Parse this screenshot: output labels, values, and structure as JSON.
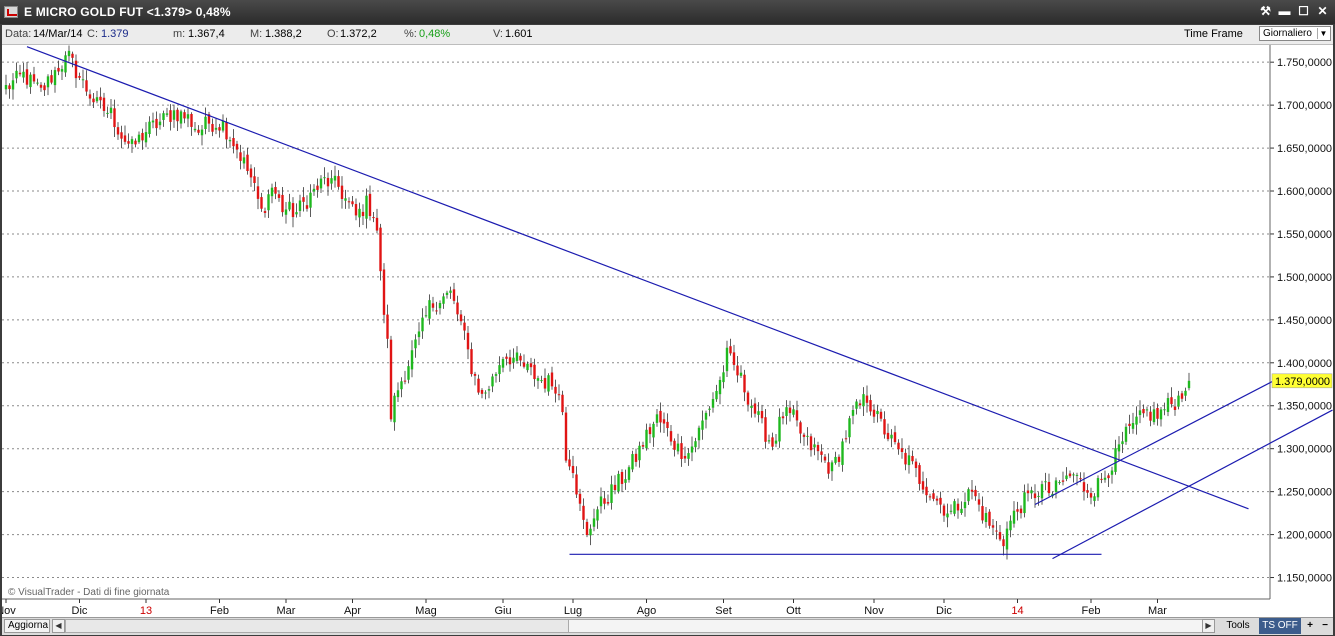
{
  "window": {
    "title": "E MICRO GOLD FUT <1.379> 0,48%",
    "buttons": {
      "tools": "⚒",
      "minimize": "▬",
      "maximize": "☐",
      "close": "✕"
    }
  },
  "infobar": {
    "data_label": "Data:",
    "data_value": "14/Mar/14",
    "close_label": "C:",
    "close_value": "1.379",
    "min_label": "m:",
    "min_value": "1.367,4",
    "max_label": "M:",
    "max_value": "1.388,2",
    "open_label": "O:",
    "open_value": "1.372,2",
    "pct_label": "%:",
    "pct_value": "0,48%",
    "vol_label": "V:",
    "vol_value": "1.601",
    "timeframe_label": "Time Frame",
    "timeframe_value": "Giornaliero"
  },
  "chart_data": {
    "type": "candlestick",
    "y_ticks": [
      "1.750,0000",
      "1.700,0000",
      "1.650,0000",
      "1.600,0000",
      "1.550,0000",
      "1.500,0000",
      "1.450,0000",
      "1.400,0000",
      "1.350,0000",
      "1.300,0000",
      "1.250,0000",
      "1.200,0000",
      "1.150,0000"
    ],
    "y_tick_values": [
      1750,
      1700,
      1650,
      1600,
      1550,
      1500,
      1450,
      1400,
      1350,
      1300,
      1250,
      1200,
      1150
    ],
    "ylim": [
      1125,
      1770
    ],
    "x_labels": [
      {
        "t": "Nov",
        "i": 0,
        "red": false
      },
      {
        "t": "Dic",
        "i": 21,
        "red": false
      },
      {
        "t": "13",
        "i": 40,
        "red": true
      },
      {
        "t": "Feb",
        "i": 61,
        "red": false
      },
      {
        "t": "Mar",
        "i": 80,
        "red": false
      },
      {
        "t": "Apr",
        "i": 99,
        "red": false
      },
      {
        "t": "Mag",
        "i": 120,
        "red": false
      },
      {
        "t": "Giu",
        "i": 142,
        "red": false
      },
      {
        "t": "Lug",
        "i": 162,
        "red": false
      },
      {
        "t": "Ago",
        "i": 183,
        "red": false
      },
      {
        "t": "Set",
        "i": 205,
        "red": false
      },
      {
        "t": "Ott",
        "i": 225,
        "red": false
      },
      {
        "t": "Nov",
        "i": 248,
        "red": false
      },
      {
        "t": "Dic",
        "i": 268,
        "red": false
      },
      {
        "t": "14",
        "i": 289,
        "red": true
      },
      {
        "t": "Feb",
        "i": 310,
        "red": false
      },
      {
        "t": "Mar",
        "i": 329,
        "red": false
      }
    ],
    "anchors": [
      [
        0,
        1720
      ],
      [
        5,
        1735
      ],
      [
        10,
        1715
      ],
      [
        15,
        1745
      ],
      [
        18,
        1755
      ],
      [
        22,
        1725
      ],
      [
        26,
        1700
      ],
      [
        30,
        1690
      ],
      [
        33,
        1665
      ],
      [
        36,
        1650
      ],
      [
        40,
        1670
      ],
      [
        44,
        1680
      ],
      [
        48,
        1692
      ],
      [
        52,
        1685
      ],
      [
        55,
        1670
      ],
      [
        58,
        1680
      ],
      [
        62,
        1678
      ],
      [
        66,
        1650
      ],
      [
        70,
        1615
      ],
      [
        73,
        1575
      ],
      [
        76,
        1605
      ],
      [
        79,
        1580
      ],
      [
        83,
        1575
      ],
      [
        87,
        1595
      ],
      [
        91,
        1612
      ],
      [
        95,
        1605
      ],
      [
        97,
        1590
      ],
      [
        100,
        1570
      ],
      [
        103,
        1585
      ],
      [
        105,
        1575
      ],
      [
        106,
        1555
      ],
      [
        107,
        1500
      ],
      [
        109,
        1420
      ],
      [
        110,
        1340
      ],
      [
        112,
        1370
      ],
      [
        115,
        1400
      ],
      [
        118,
        1430
      ],
      [
        121,
        1465
      ],
      [
        124,
        1475
      ],
      [
        127,
        1480
      ],
      [
        130,
        1445
      ],
      [
        133,
        1395
      ],
      [
        136,
        1360
      ],
      [
        139,
        1380
      ],
      [
        142,
        1410
      ],
      [
        145,
        1405
      ],
      [
        148,
        1395
      ],
      [
        151,
        1385
      ],
      [
        154,
        1378
      ],
      [
        157,
        1375
      ],
      [
        159,
        1345
      ],
      [
        160,
        1295
      ],
      [
        162,
        1280
      ],
      [
        164,
        1230
      ],
      [
        166,
        1195
      ],
      [
        168,
        1225
      ],
      [
        171,
        1240
      ],
      [
        174,
        1255
      ],
      [
        177,
        1270
      ],
      [
        180,
        1290
      ],
      [
        183,
        1315
      ],
      [
        186,
        1335
      ],
      [
        189,
        1320
      ],
      [
        192,
        1300
      ],
      [
        195,
        1295
      ],
      [
        198,
        1320
      ],
      [
        201,
        1350
      ],
      [
        204,
        1378
      ],
      [
        206,
        1408
      ],
      [
        208,
        1395
      ],
      [
        210,
        1380
      ],
      [
        213,
        1352
      ],
      [
        216,
        1325
      ],
      [
        219,
        1305
      ],
      [
        222,
        1340
      ],
      [
        225,
        1335
      ],
      [
        228,
        1310
      ],
      [
        232,
        1295
      ],
      [
        236,
        1275
      ],
      [
        239,
        1305
      ],
      [
        242,
        1340
      ],
      [
        246,
        1360
      ],
      [
        249,
        1335
      ],
      [
        252,
        1315
      ],
      [
        255,
        1295
      ],
      [
        258,
        1285
      ],
      [
        261,
        1265
      ],
      [
        264,
        1250
      ],
      [
        267,
        1235
      ],
      [
        270,
        1225
      ],
      [
        273,
        1240
      ],
      [
        276,
        1250
      ],
      [
        279,
        1225
      ],
      [
        282,
        1205
      ],
      [
        285,
        1195
      ],
      [
        287,
        1215
      ],
      [
        290,
        1235
      ],
      [
        293,
        1245
      ],
      [
        296,
        1255
      ],
      [
        299,
        1248
      ],
      [
        302,
        1262
      ],
      [
        305,
        1270
      ],
      [
        308,
        1255
      ],
      [
        311,
        1252
      ],
      [
        314,
        1270
      ],
      [
        317,
        1290
      ],
      [
        320,
        1315
      ],
      [
        323,
        1330
      ],
      [
        326,
        1342
      ],
      [
        329,
        1338
      ],
      [
        332,
        1350
      ],
      [
        335,
        1358
      ],
      [
        337,
        1375
      ],
      [
        338,
        1379
      ]
    ],
    "trendlines": [
      {
        "name": "resistance",
        "x1": 6,
        "y1": 1768,
        "x2": 355,
        "y2": 1230
      },
      {
        "name": "support-base",
        "x1": 161,
        "y1": 1177,
        "x2": 313,
        "y2": 1177
      },
      {
        "name": "channel-upper",
        "x1": 294,
        "y1": 1235,
        "x2": 365,
        "y2": 1385
      },
      {
        "name": "channel-lower",
        "x1": 299,
        "y1": 1172,
        "x2": 379,
        "y2": 1345
      }
    ],
    "last_price_label": "1.379,0000",
    "last_price_value": 1379,
    "watermark": "© VisualTrader - Dati di fine giornata",
    "colors": {
      "up": "#1fb81f",
      "down": "#e01414",
      "wick": "#333333",
      "trendline": "#1c1cb0",
      "grid": "#8a8a8a",
      "background": "#ffffff",
      "price_tag": "#ffff33"
    }
  },
  "bottombar": {
    "aggiorna": "Aggiorna",
    "tools": "Tools",
    "tsoff": "TS OFF",
    "plus": "+",
    "minus": "−",
    "scroll_left": "◀",
    "scroll_right": "▶"
  }
}
